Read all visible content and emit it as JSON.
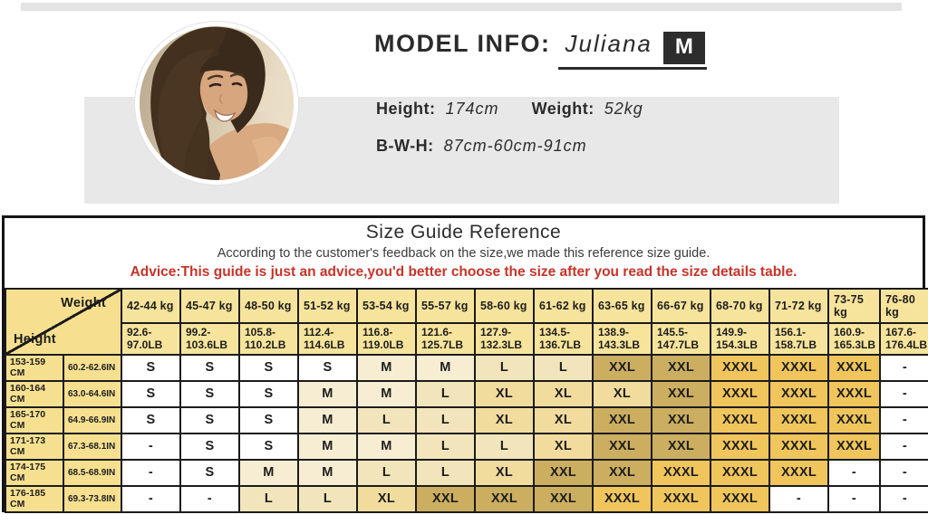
{
  "model_info": {
    "title": "MODEL INFO:",
    "name": "Juliana",
    "size_badge": "M",
    "height_label": "Height:",
    "height_value": "174cm",
    "weight_label": "Weight:",
    "weight_value": "52kg",
    "bwh_label": "B-W-H:",
    "bwh_value": "87cm-60cm-91cm"
  },
  "size_guide": {
    "title": "Size Guide Reference",
    "subtitle": "According to the customer's feedback on the size,we made this reference size guide.",
    "advice": "Advice:This guide is just an advice,you'd better choose the size after you read the size details table.",
    "corner": {
      "weight_label": "Weight",
      "height_label": "Height"
    },
    "weight_columns": [
      {
        "kg": "42-44 kg",
        "lb": [
          "92.6-",
          "97.0LB"
        ]
      },
      {
        "kg": "45-47 kg",
        "lb": [
          "99.2-",
          "103.6LB"
        ]
      },
      {
        "kg": "48-50 kg",
        "lb": [
          "105.8-",
          "110.2LB"
        ]
      },
      {
        "kg": "51-52 kg",
        "lb": [
          "112.4-",
          "114.6LB"
        ]
      },
      {
        "kg": "53-54 kg",
        "lb": [
          "116.8-",
          "119.0LB"
        ]
      },
      {
        "kg": "55-57 kg",
        "lb": [
          "121.6-",
          "125.7LB"
        ]
      },
      {
        "kg": "58-60 kg",
        "lb": [
          "127.9-",
          "132.3LB"
        ]
      },
      {
        "kg": "61-62 kg",
        "lb": [
          "134.5-",
          "136.7LB"
        ]
      },
      {
        "kg": "63-65 kg",
        "lb": [
          "138.9-",
          "143.3LB"
        ]
      },
      {
        "kg": "66-67 kg",
        "lb": [
          "145.5-",
          "147.7LB"
        ]
      },
      {
        "kg": "68-70 kg",
        "lb": [
          "149.9-",
          "154.3LB"
        ]
      },
      {
        "kg": "71-72 kg",
        "lb": [
          "156.1-",
          "158.7LB"
        ]
      },
      {
        "kg": "73-75 kg",
        "lb": [
          "160.9-",
          "165.3LB"
        ]
      },
      {
        "kg": "76-80 kg",
        "lb": [
          "167.6-",
          "176.4LB"
        ]
      }
    ],
    "rows": [
      {
        "cm": "153-159 CM",
        "in": "60.2-62.6IN",
        "sizes": [
          "S",
          "S",
          "S",
          "S",
          "M",
          "M",
          "L",
          "L",
          "XXL",
          "XXL",
          "XXXL",
          "XXXL",
          "XXXL",
          "-"
        ]
      },
      {
        "cm": "160-164 CM",
        "in": "63.0-64.6IN",
        "sizes": [
          "S",
          "S",
          "S",
          "M",
          "M",
          "L",
          "XL",
          "XL",
          "XL",
          "XXL",
          "XXXL",
          "XXXL",
          "XXXL",
          "-"
        ]
      },
      {
        "cm": "165-170 CM",
        "in": "64.9-66.9IN",
        "sizes": [
          "S",
          "S",
          "S",
          "M",
          "L",
          "L",
          "XL",
          "XL",
          "XXL",
          "XXL",
          "XXXL",
          "XXXL",
          "XXXL",
          "-"
        ]
      },
      {
        "cm": "171-173 CM",
        "in": "67.3-68.1IN",
        "sizes": [
          "-",
          "S",
          "S",
          "M",
          "M",
          "L",
          "L",
          "XL",
          "XXL",
          "XXL",
          "XXXL",
          "XXXL",
          "XXXL",
          "-"
        ]
      },
      {
        "cm": "174-175 CM",
        "in": "68.5-68.9IN",
        "sizes": [
          "-",
          "S",
          "M",
          "M",
          "L",
          "L",
          "XL",
          "XXL",
          "XXL",
          "XXXL",
          "XXXL",
          "XXXL",
          "-",
          "-"
        ]
      },
      {
        "cm": "176-185 CM",
        "in": "69.3-73.8IN",
        "sizes": [
          "-",
          "-",
          "L",
          "L",
          "XL",
          "XXL",
          "XXL",
          "XXL",
          "XXXL",
          "XXXL",
          "XXXL",
          "-",
          "-",
          "-"
        ]
      }
    ],
    "size_colors": {
      "S": "#ffffff",
      "M": "#f6edd2",
      "L": "#f2e5bb",
      "XL": "#f1dc9e",
      "XXL": "#cbae60",
      "XXXL": "#efc55c",
      "-": "#ffffff"
    },
    "header_color": "#f7e49c",
    "height_col_color": "#f6e090",
    "advice_color": "#c63429"
  }
}
